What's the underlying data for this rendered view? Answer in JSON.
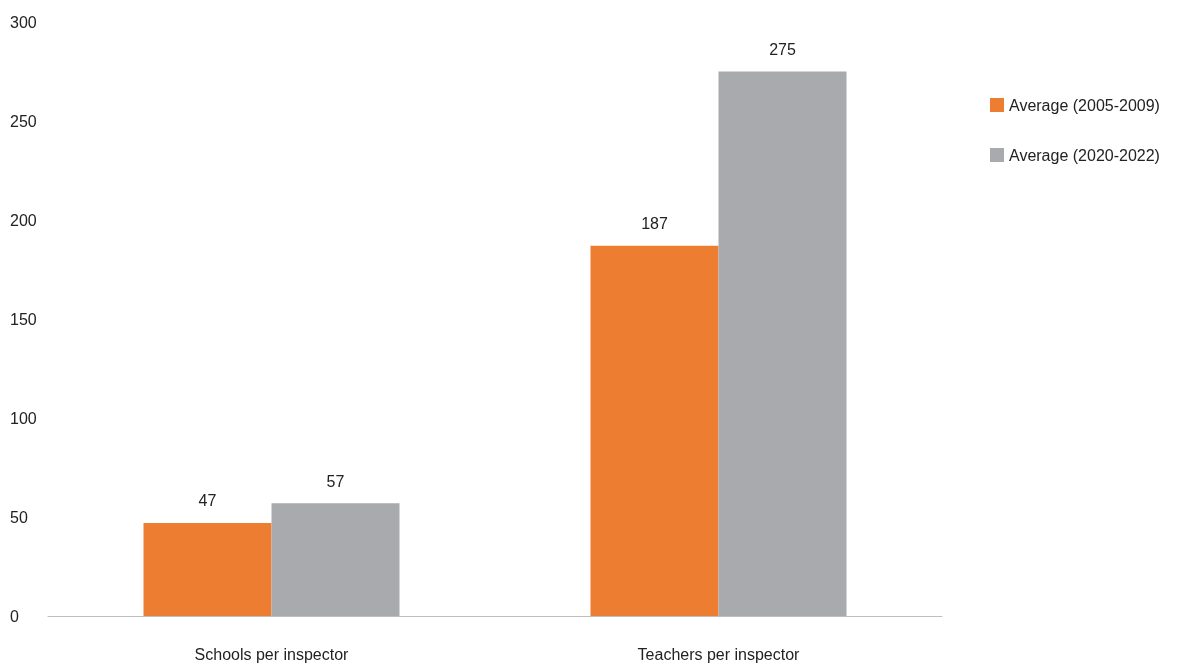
{
  "chart_data": {
    "type": "bar",
    "categories": [
      "Schools per inspector",
      "Teachers per inspector"
    ],
    "series": [
      {
        "name": "Average (2005-2009)",
        "color": "#ed7d31",
        "values": [
          47,
          187
        ]
      },
      {
        "name": "Average (2020-2022)",
        "color": "#a9aaad",
        "values": [
          57,
          275
        ]
      }
    ],
    "ylim": [
      0,
      300
    ],
    "yticks": [
      0,
      50,
      100,
      150,
      200,
      250,
      300
    ],
    "grid": false,
    "legend": "right",
    "data_labels": true
  }
}
